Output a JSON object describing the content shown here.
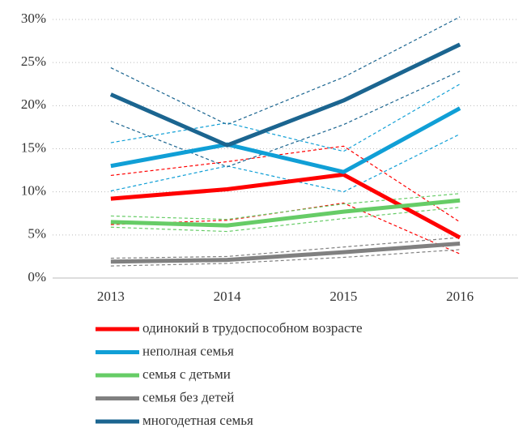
{
  "chart_data": {
    "type": "line",
    "categories": [
      "2013",
      "2014",
      "2015",
      "2016"
    ],
    "ylim": [
      0,
      30
    ],
    "yticks": [
      {
        "value": 0,
        "label": "0%"
      },
      {
        "value": 5,
        "label": "5%"
      },
      {
        "value": 10,
        "label": "10%"
      },
      {
        "value": 15,
        "label": "15%"
      },
      {
        "value": 20,
        "label": "20%"
      },
      {
        "value": 25,
        "label": "25%"
      },
      {
        "value": 30,
        "label": "30%"
      }
    ],
    "grid": true,
    "series": [
      {
        "name": "одинокий в трудоспособном возрасте",
        "color": "#ff0000",
        "values": [
          9.2,
          10.3,
          12.0,
          4.7
        ],
        "upper": [
          11.9,
          13.5,
          15.3,
          6.5
        ],
        "lower": [
          6.2,
          6.7,
          8.7,
          2.8
        ]
      },
      {
        "name": "неполная семья",
        "color": "#109fd6",
        "values": [
          13.0,
          15.5,
          12.3,
          19.7
        ],
        "upper": [
          15.7,
          18.0,
          14.7,
          22.5
        ],
        "lower": [
          10.1,
          13.0,
          10.0,
          16.7
        ]
      },
      {
        "name": "семья с детьми",
        "color": "#66cc66",
        "values": [
          6.5,
          6.1,
          7.7,
          9.0
        ],
        "upper": [
          7.2,
          6.8,
          8.6,
          9.8
        ],
        "lower": [
          5.9,
          5.4,
          6.9,
          8.2
        ]
      },
      {
        "name": "семья без детей",
        "color": "#808080",
        "values": [
          1.9,
          2.1,
          3.0,
          4.0
        ],
        "upper": [
          2.3,
          2.5,
          3.6,
          4.7
        ],
        "lower": [
          1.4,
          1.7,
          2.4,
          3.3
        ]
      },
      {
        "name": "многодетная семья",
        "color": "#1b6590",
        "values": [
          21.3,
          15.4,
          20.6,
          27.1
        ],
        "upper": [
          24.4,
          17.8,
          23.3,
          30.3
        ],
        "lower": [
          18.2,
          12.9,
          17.8,
          24.0
        ]
      }
    ]
  }
}
